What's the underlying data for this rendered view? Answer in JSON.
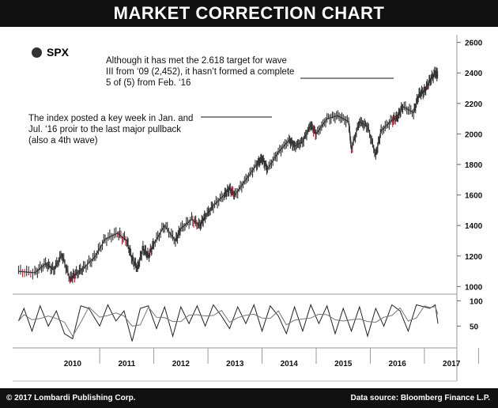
{
  "header": {
    "title": "MARKET CORRECTION CHART"
  },
  "footer": {
    "copyright": "© 2017 Lombardi Publishing Corp.",
    "source": "Data source: Bloomberg Finance L.P."
  },
  "chart_data": {
    "type": "line",
    "series": [
      {
        "name": "SPX",
        "x": [
          2009.5,
          2009.8,
          2010.0,
          2010.15,
          2010.3,
          2010.45,
          2010.55,
          2010.7,
          2010.9,
          2011.1,
          2011.33,
          2011.5,
          2011.6,
          2011.7,
          2011.8,
          2011.9,
          2012.0,
          2012.2,
          2012.4,
          2012.5,
          2012.7,
          2012.85,
          2012.95,
          2013.1,
          2013.3,
          2013.4,
          2013.5,
          2013.7,
          2013.9,
          2014.0,
          2014.1,
          2014.3,
          2014.5,
          2014.6,
          2014.75,
          2014.9,
          2015.0,
          2015.2,
          2015.4,
          2015.6,
          2015.65,
          2015.8,
          2015.95,
          2016.1,
          2016.2,
          2016.4,
          2016.5,
          2016.6,
          2016.8,
          2016.9,
          2017.0,
          2017.1,
          2017.2,
          2017.25
        ],
        "values": [
          1100,
          1090,
          1150,
          1110,
          1210,
          1050,
          1080,
          1120,
          1190,
          1310,
          1350,
          1300,
          1180,
          1120,
          1250,
          1200,
          1280,
          1400,
          1300,
          1380,
          1440,
          1400,
          1460,
          1530,
          1600,
          1640,
          1600,
          1700,
          1800,
          1840,
          1770,
          1880,
          1960,
          1920,
          1950,
          2060,
          2000,
          2100,
          2120,
          2080,
          1900,
          2080,
          2050,
          1860,
          2020,
          2090,
          2110,
          2180,
          2140,
          2260,
          2280,
          2350,
          2400,
          2380
        ]
      }
    ],
    "oscillator": {
      "x": [
        2009.5,
        2009.6,
        2009.75,
        2009.9,
        2010.05,
        2010.2,
        2010.35,
        2010.5,
        2010.65,
        2010.8,
        2011.0,
        2011.15,
        2011.3,
        2011.45,
        2011.6,
        2011.75,
        2011.9,
        2012.05,
        2012.2,
        2012.35,
        2012.5,
        2012.65,
        2012.8,
        2012.95,
        2013.1,
        2013.25,
        2013.4,
        2013.55,
        2013.7,
        2013.85,
        2014.0,
        2014.15,
        2014.3,
        2014.45,
        2014.6,
        2014.75,
        2014.9,
        2015.05,
        2015.2,
        2015.35,
        2015.5,
        2015.65,
        2015.8,
        2015.95,
        2016.1,
        2016.25,
        2016.4,
        2016.55,
        2016.7,
        2016.85,
        2017.0,
        2017.1,
        2017.2,
        2017.25
      ],
      "values": [
        60,
        85,
        40,
        90,
        50,
        80,
        35,
        25,
        90,
        85,
        50,
        92,
        60,
        80,
        20,
        85,
        90,
        45,
        88,
        30,
        88,
        55,
        90,
        50,
        92,
        70,
        45,
        88,
        55,
        92,
        40,
        90,
        70,
        35,
        88,
        40,
        92,
        55,
        90,
        35,
        85,
        40,
        88,
        30,
        85,
        50,
        92,
        80,
        40,
        92,
        88,
        85,
        92,
        55
      ]
    },
    "y_ticks": [
      "1000",
      "1200",
      "1400",
      "1600",
      "1800",
      "2000",
      "2200",
      "2400",
      "2600"
    ],
    "osc_ticks": [
      "50",
      "100"
    ],
    "x_ticks": [
      "2010",
      "2011",
      "2012",
      "2013",
      "2014",
      "2015",
      "2016",
      "2017"
    ],
    "ylim": [
      950,
      2650
    ],
    "osc_ylim": [
      10,
      110
    ],
    "legend": "top-left",
    "annotations": [
      "Although it has met the 2.618 target for wave III from ‘09 (2,452), it hasn’t formed a complete 5 of (5) from Feb. ‘16",
      "The index posted a key week in Jan. and Jul. ‘16 proir to the last major pullback (also a 4th wave)"
    ],
    "colors": {
      "candle": "#333333",
      "down": "#b2283a",
      "osc_fast": "#222222",
      "osc_slow": "#777777"
    }
  }
}
